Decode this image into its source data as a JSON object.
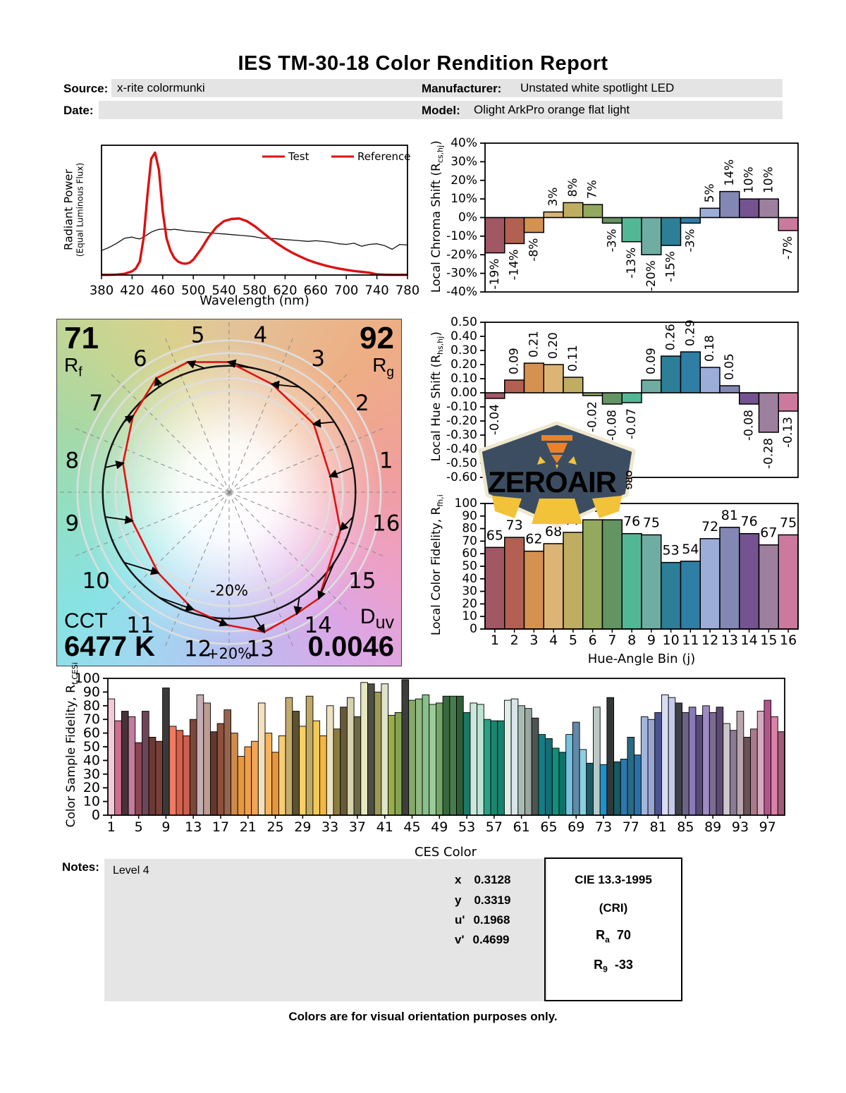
{
  "header": {
    "title": "IES TM-30-18 Color Rendition Report",
    "source_label": "Source:",
    "source_value": "x-rite colormunki",
    "date_label": "Date:",
    "date_value": "",
    "manufacturer_label": "Manufacturer:",
    "manufacturer_value": "Unstated white spotlight LED",
    "model_label": "Model:",
    "model_value": "Olight ArkPro orange flat light"
  },
  "cvg": {
    "rf_value": "71",
    "rf_sym": "R",
    "rf_sub": "f",
    "rg_value": "92",
    "rg_sym": "R",
    "rg_sub": "g",
    "cct_label": "CCT",
    "cct_value": "6477 K",
    "duv_sym": "D",
    "duv_sub": "uv",
    "duv_value": "0.0046",
    "minus_ring_label": "-20%",
    "plus_ring_label": "+20%",
    "bin_labels": [
      "1",
      "2",
      "3",
      "4",
      "5",
      "6",
      "7",
      "8",
      "9",
      "10",
      "11",
      "12",
      "13",
      "14",
      "15",
      "16"
    ]
  },
  "logo": {
    "text": "ZEROAIR",
    "org": "ORG",
    "badge_color": "#3c4d61",
    "accent_color": "#e8832c",
    "beam_color": "#f2c338",
    "outline_color": "#efe7cd"
  },
  "notes": {
    "label": "Notes:",
    "value": "Level 4"
  },
  "chromaticity": {
    "rows": [
      {
        "label": "x",
        "value": "0.3128"
      },
      {
        "label": "y",
        "value": "0.3319"
      },
      {
        "label": "u'",
        "value": "0.1968"
      },
      {
        "label": "v'",
        "value": "0.4699"
      }
    ]
  },
  "cri": {
    "title": "CIE 13.3-1995",
    "subtitle": "(CRI)",
    "ra_sym": "R",
    "ra_sub": "a",
    "ra_value": "70",
    "r9_sym": "R",
    "r9_sub": "9",
    "r9_value": "-33"
  },
  "footer": "Colors are for visual orientation purposes only.",
  "chart_data": [
    {
      "id": "spd",
      "type": "line",
      "ylabel_main": "Radiant Power",
      "ylabel_sub": "(Equal Luminous Flux)",
      "xlabel": "Wavelength (nm)",
      "x_range": [
        380,
        780
      ],
      "ylim": [
        0,
        1.06
      ],
      "xticks": [
        380,
        420,
        460,
        500,
        540,
        580,
        620,
        660,
        700,
        740,
        780
      ],
      "legend": [
        {
          "label": "Test",
          "color": "#dd1111",
          "text_color": "#dd1111"
        },
        {
          "label": "Reference",
          "color": "#dd1111",
          "text_color": "#111111"
        }
      ],
      "wavelengths": [
        380,
        390,
        400,
        410,
        420,
        425,
        430,
        435,
        440,
        445,
        450,
        455,
        460,
        465,
        470,
        475,
        480,
        485,
        490,
        495,
        500,
        510,
        520,
        530,
        540,
        550,
        560,
        570,
        580,
        590,
        600,
        610,
        620,
        630,
        640,
        650,
        660,
        670,
        680,
        690,
        700,
        710,
        720,
        730,
        740,
        750,
        760,
        770,
        780
      ],
      "series": [
        {
          "name": "Test",
          "color": "#dd1111",
          "width": 3.4,
          "values": [
            0.002,
            0.002,
            0.004,
            0.01,
            0.03,
            0.055,
            0.11,
            0.3,
            0.65,
            0.95,
            1.0,
            0.86,
            0.52,
            0.3,
            0.2,
            0.14,
            0.11,
            0.096,
            0.092,
            0.1,
            0.125,
            0.21,
            0.31,
            0.39,
            0.44,
            0.458,
            0.462,
            0.44,
            0.4,
            0.35,
            0.3,
            0.255,
            0.215,
            0.18,
            0.15,
            0.122,
            0.1,
            0.082,
            0.066,
            0.053,
            0.042,
            0.033,
            0.026,
            0.019,
            0.006,
            0.003,
            0.002,
            0.002,
            0.002
          ]
        },
        {
          "name": "Reference",
          "color": "#111111",
          "width": 1.3,
          "values": [
            0.2,
            0.225,
            0.26,
            0.3,
            0.31,
            0.3,
            0.295,
            0.31,
            0.33,
            0.35,
            0.363,
            0.373,
            0.375,
            0.374,
            0.37,
            0.374,
            0.37,
            0.366,
            0.36,
            0.358,
            0.355,
            0.35,
            0.345,
            0.34,
            0.335,
            0.33,
            0.325,
            0.32,
            0.313,
            0.3,
            0.3,
            0.295,
            0.29,
            0.285,
            0.28,
            0.275,
            0.28,
            0.274,
            0.268,
            0.255,
            0.25,
            0.26,
            0.235,
            0.25,
            0.255,
            0.24,
            0.21,
            0.25,
            0.245
          ]
        }
      ]
    },
    {
      "id": "chroma",
      "type": "bar",
      "ylabel_main": "Local Chroma Shift (R",
      "ylabel_sub": "cs,hj",
      "ylabel_end": ")",
      "categories": [
        1,
        2,
        3,
        4,
        5,
        6,
        7,
        8,
        9,
        10,
        11,
        12,
        13,
        14,
        15,
        16
      ],
      "values": [
        -19,
        -14,
        -8,
        3,
        8,
        7,
        -3,
        -13,
        -20,
        -15,
        -3,
        5,
        14,
        10,
        10,
        -7
      ],
      "labels": [
        "-19%",
        "-14%",
        "-8%",
        "3%",
        "8%",
        "7%",
        "-3%",
        "-13%",
        "-20%",
        "-15%",
        "-3%",
        "5%",
        "14%",
        "10%",
        "10%",
        "-7%"
      ],
      "ylim": [
        -40,
        40
      ],
      "yticks": [
        {
          "v": 40,
          "t": "40%"
        },
        {
          "v": 30,
          "t": "30%"
        },
        {
          "v": 20,
          "t": "20%"
        },
        {
          "v": 10,
          "t": "10%"
        },
        {
          "v": 0,
          "t": "0%"
        },
        {
          "v": -10,
          "t": "-10%"
        },
        {
          "v": -20,
          "t": "-20%"
        },
        {
          "v": -30,
          "t": "-30%"
        },
        {
          "v": -40,
          "t": "-40%"
        }
      ],
      "colors": [
        "#a25765",
        "#b26052",
        "#d4914f",
        "#dcb476",
        "#bfae62",
        "#92a95e",
        "#659463",
        "#52b795",
        "#6fada3",
        "#2d7f97",
        "#2f7ea6",
        "#9cadd8",
        "#8387b3",
        "#745390",
        "#9d7f9e",
        "#cb7a9d"
      ]
    },
    {
      "id": "hue",
      "type": "bar",
      "ylabel_main": "Local Hue Shift (R",
      "ylabel_sub": "hs,hj",
      "ylabel_end": ")",
      "categories": [
        1,
        2,
        3,
        4,
        5,
        6,
        7,
        8,
        9,
        10,
        11,
        12,
        13,
        14,
        15,
        16
      ],
      "values": [
        -0.04,
        0.09,
        0.21,
        0.2,
        0.11,
        -0.02,
        -0.08,
        -0.07,
        0.09,
        0.26,
        0.29,
        0.18,
        0.05,
        -0.08,
        -0.28,
        -0.13
      ],
      "labels": [
        "-0.04",
        "0.09",
        "0.21",
        "0.20",
        "0.11",
        "-0.02",
        "-0.08",
        "-0.07",
        "0.09",
        "0.26",
        "0.29",
        "0.18",
        "0.05",
        "-0.08",
        "-0.28",
        "-0.13"
      ],
      "ylim": [
        -0.6,
        0.5
      ],
      "yticks": [
        {
          "v": 0.5,
          "t": "0.50"
        },
        {
          "v": 0.4,
          "t": "0.40"
        },
        {
          "v": 0.3,
          "t": "0.30"
        },
        {
          "v": 0.2,
          "t": "0.20"
        },
        {
          "v": 0.1,
          "t": "0.10"
        },
        {
          "v": 0,
          "t": "0.00"
        },
        {
          "v": -0.1,
          "t": "-0.10"
        },
        {
          "v": -0.2,
          "t": "-0.20"
        },
        {
          "v": -0.3,
          "t": "-0.30"
        },
        {
          "v": -0.4,
          "t": "-0.40"
        },
        {
          "v": -0.5,
          "t": "-0.50"
        },
        {
          "v": -0.6,
          "t": "-0.60"
        }
      ],
      "colors": [
        "#a25765",
        "#b26052",
        "#d4914f",
        "#dcb476",
        "#bfae62",
        "#92a95e",
        "#659463",
        "#52b795",
        "#6fada3",
        "#2d7f97",
        "#2f7ea6",
        "#9cadd8",
        "#8387b3",
        "#745390",
        "#9d7f9e",
        "#cb7a9d"
      ]
    },
    {
      "id": "fidelity",
      "type": "bar",
      "ylabel_main": "Local Color Fidelity, R",
      "ylabel_sub": "fh,i",
      "ylabel_end": "",
      "xlabel": "Hue-Angle Bin (j)",
      "categories": [
        1,
        2,
        3,
        4,
        5,
        6,
        7,
        8,
        9,
        10,
        11,
        12,
        13,
        14,
        15,
        16
      ],
      "values": [
        65,
        73,
        62,
        68,
        77,
        87,
        87,
        76,
        75,
        53,
        54,
        72,
        81,
        76,
        67,
        75
      ],
      "labels": [
        "65",
        "73",
        "62",
        "68",
        "77",
        "87",
        "87",
        "76",
        "75",
        "53",
        "54",
        "72",
        "81",
        "76",
        "67",
        "75"
      ],
      "ylim": [
        0,
        100
      ],
      "yticks": [
        {
          "v": 100,
          "t": "100"
        },
        {
          "v": 90,
          "t": "90"
        },
        {
          "v": 80,
          "t": "80"
        },
        {
          "v": 70,
          "t": "70"
        },
        {
          "v": 60,
          "t": "60"
        },
        {
          "v": 50,
          "t": "50"
        },
        {
          "v": 40,
          "t": "40"
        },
        {
          "v": 30,
          "t": "30"
        },
        {
          "v": 20,
          "t": "20"
        },
        {
          "v": 10,
          "t": "10"
        },
        {
          "v": 0,
          "t": "0"
        }
      ],
      "xticks": [
        1,
        2,
        3,
        4,
        5,
        6,
        7,
        8,
        9,
        10,
        11,
        12,
        13,
        14,
        15,
        16
      ],
      "colors": [
        "#a25765",
        "#b26052",
        "#d4914f",
        "#dcb476",
        "#bfae62",
        "#92a95e",
        "#659463",
        "#52b795",
        "#6fada3",
        "#2d7f97",
        "#2f7ea6",
        "#9cadd8",
        "#8387b3",
        "#745390",
        "#9d7f9e",
        "#cb7a9d"
      ]
    },
    {
      "id": "ces",
      "type": "bar",
      "ylabel_main": "Color Sample Fidelity, R",
      "ylabel_sub": "f,CESi",
      "ylabel_end": "",
      "xlabel": "CES Color",
      "ylim": [
        0,
        100
      ],
      "yticks": [
        {
          "v": 100,
          "t": "100"
        },
        {
          "v": 90,
          "t": "90"
        },
        {
          "v": 80,
          "t": "80"
        },
        {
          "v": 70,
          "t": "70"
        },
        {
          "v": 60,
          "t": "60"
        },
        {
          "v": 50,
          "t": "50"
        },
        {
          "v": 40,
          "t": "40"
        },
        {
          "v": 30,
          "t": "30"
        },
        {
          "v": 20,
          "t": "20"
        },
        {
          "v": 10,
          "t": "10"
        },
        {
          "v": 0,
          "t": "0"
        }
      ],
      "xticks": [
        1,
        5,
        9,
        13,
        17,
        21,
        25,
        29,
        33,
        37,
        41,
        45,
        49,
        53,
        57,
        61,
        65,
        69,
        73,
        77,
        81,
        85,
        89,
        93,
        97
      ],
      "values": [
        85,
        69,
        76,
        72,
        53,
        76,
        57,
        54,
        93,
        65,
        62,
        58,
        70,
        88,
        82,
        61,
        67,
        77,
        60,
        43,
        50,
        54,
        82,
        60,
        46,
        58,
        86,
        76,
        65,
        87,
        69,
        58,
        80,
        63,
        79,
        86,
        72,
        97,
        96,
        90,
        96,
        73,
        75,
        99,
        84,
        85,
        88,
        81,
        82,
        87,
        87,
        87,
        75,
        82,
        81,
        70,
        69,
        69,
        84,
        85,
        80,
        78,
        71,
        59,
        56,
        49,
        46,
        59,
        68,
        48,
        38,
        79,
        37,
        86,
        39,
        41,
        57,
        44,
        72,
        70,
        75,
        88,
        86,
        82,
        75,
        79,
        73,
        80,
        75,
        79,
        67,
        62,
        76,
        57,
        63,
        76,
        84,
        72,
        61
      ],
      "colors": [
        "#f4c9d8",
        "#ce6d8f",
        "#473237",
        "#c17d9b",
        "#8e4455",
        "#6d4558",
        "#6b3a35",
        "#7a4038",
        "#3b3a3a",
        "#f07b62",
        "#d95f4b",
        "#cc5f4d",
        "#7c4638",
        "#c3aeb4",
        "#bd9c92",
        "#643831",
        "#8d513b",
        "#97644d",
        "#cd8b4a",
        "#e9973f",
        "#f0a04b",
        "#f2a457",
        "#f4e0bd",
        "#f6b45e",
        "#e9953d",
        "#f6cd72",
        "#c3ab6b",
        "#5c5232",
        "#f7cf63",
        "#bfa964",
        "#f2c957",
        "#f3b742",
        "#eee3c0",
        "#8c7c3f",
        "#665a38",
        "#d6d2ae",
        "#6b6844",
        "#e7e7c0",
        "#4e4f42",
        "#9c9a55",
        "#dfe3c8",
        "#9aad49",
        "#83a54f",
        "#3c3f3a",
        "#87a86a",
        "#8fb97e",
        "#88c08c",
        "#9ccb9a",
        "#74a766",
        "#39683f",
        "#477a4d",
        "#2f5d38",
        "#1a7a66",
        "#c9e7da",
        "#bfe3d2",
        "#2ba183",
        "#18866f",
        "#13836d",
        "#ddeee6",
        "#d8e4ea",
        "#a9bcb3",
        "#9aa8a1",
        "#4b5450",
        "#127f86",
        "#176d75",
        "#108f7a",
        "#0b7267",
        "#74c3de",
        "#6289a9",
        "#8bcfdf",
        "#1d5a65",
        "#b9c9c5",
        "#2191c8",
        "#333737",
        "#145b63",
        "#2b77ae",
        "#2a6a82",
        "#2a71a8",
        "#a3b5dc",
        "#9aa6d2",
        "#4a5492",
        "#d9dcf2",
        "#c6cbea",
        "#3d4145",
        "#6b6489",
        "#8a7ab8",
        "#584a77",
        "#9e8ac6",
        "#7a6c91",
        "#5d4971",
        "#cbc7cc",
        "#8a7a92",
        "#b9a5ae",
        "#6a5256",
        "#aa7a8a",
        "#d6aabe",
        "#b2548a",
        "#da82a6",
        "#a25a7a"
      ]
    },
    {
      "id": "cvg_vectors",
      "type": "polar-vector",
      "rf": 71,
      "rg": 92,
      "cct": "6477 K",
      "duv": "0.0046",
      "chroma_shift_pct": [
        -19,
        -14,
        -8,
        3,
        8,
        7,
        -3,
        -13,
        -20,
        -15,
        -3,
        5,
        14,
        10,
        10,
        -7
      ],
      "hue_shift": [
        -0.04,
        0.09,
        0.21,
        0.2,
        0.11,
        -0.02,
        -0.08,
        -0.07,
        0.09,
        0.26,
        0.29,
        0.18,
        0.05,
        -0.08,
        -0.28,
        -0.13
      ],
      "ring_pcts": [
        -20,
        -10,
        10,
        20
      ]
    }
  ]
}
